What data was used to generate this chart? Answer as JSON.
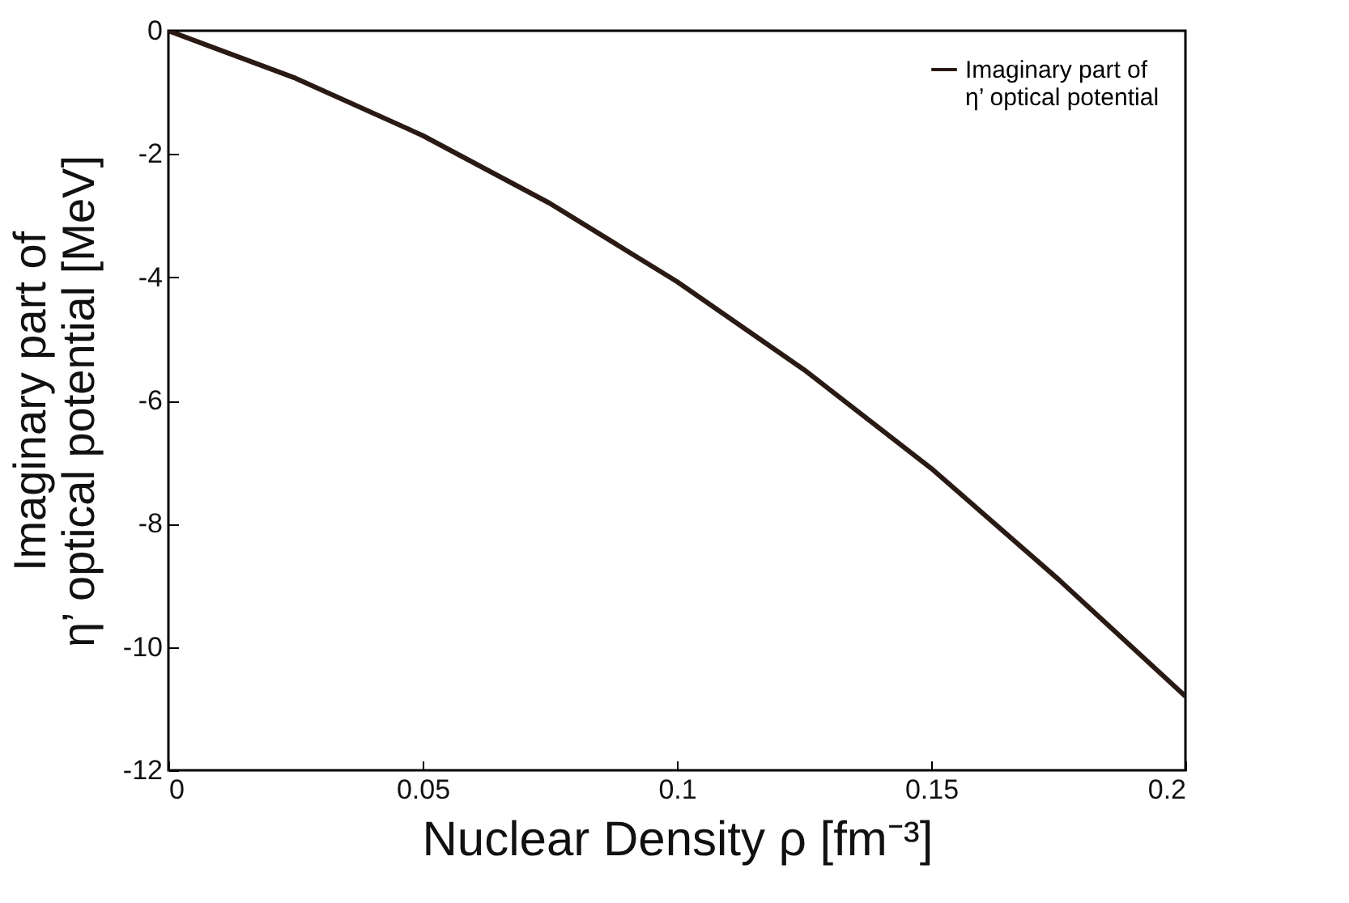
{
  "chart_data": {
    "type": "line",
    "xlabel": "Nuclear Density ρ [fm⁻³]",
    "ylabel": "Imaginary part of\nη’ optical potential [MeV]",
    "x": [
      0,
      0.025,
      0.05,
      0.075,
      0.1,
      0.125,
      0.15,
      0.175,
      0.2
    ],
    "series": [
      {
        "name": "Imaginary part of\nη’ optical potential",
        "color": "#2a1a14",
        "values": [
          0,
          -0.77,
          -1.7,
          -2.8,
          -4.07,
          -5.5,
          -7.1,
          -8.9,
          -10.8
        ]
      }
    ],
    "xlim": [
      0,
      0.2
    ],
    "xticks": [
      0,
      0.05,
      0.1,
      0.15,
      0.2
    ],
    "ylim": [
      -12,
      0
    ],
    "yticks": [
      -12,
      -10,
      -8,
      -6,
      -4,
      -2,
      0
    ],
    "grid": false,
    "legend": "top right",
    "marker": "none",
    "line_style": "solid"
  }
}
